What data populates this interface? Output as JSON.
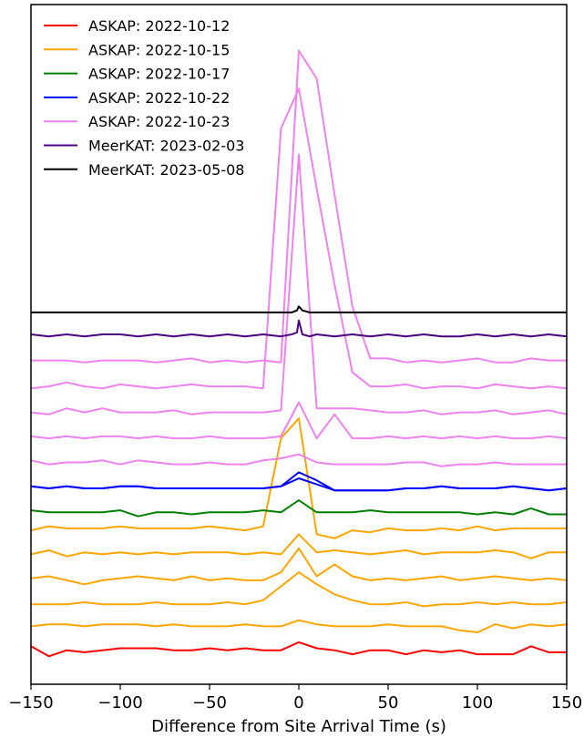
{
  "chart_data": {
    "type": "line",
    "title": "",
    "xlabel": "Difference from Site Arrival Time (s)",
    "ylabel": "",
    "xlim": [
      -150,
      150
    ],
    "ylim": [
      0,
      34
    ],
    "xticks": [
      -150,
      -100,
      -50,
      0,
      50,
      100,
      150
    ],
    "xtick_labels": [
      "−150",
      "−100",
      "−50",
      "0",
      "50",
      "100",
      "150"
    ],
    "grid": false,
    "legend_position": "top-left",
    "series": [
      {
        "name": "ASKAP: 2022-10-12",
        "color": "#ff0000"
      },
      {
        "name": "ASKAP: 2022-10-15",
        "color": "#ffa500"
      },
      {
        "name": "ASKAP: 2022-10-17",
        "color": "#008000"
      },
      {
        "name": "ASKAP: 2022-10-22",
        "color": "#0000ff"
      },
      {
        "name": "ASKAP: 2022-10-23",
        "color": "#ee82ee"
      },
      {
        "name": "MeerKAT: 2023-02-03",
        "color": "#4b0082"
      },
      {
        "name": "MeerKAT: 2023-05-08",
        "color": "#000000"
      }
    ],
    "traces": [
      {
        "series": 0,
        "x": [
          -150,
          -140,
          -130,
          -120,
          -110,
          -100,
          -90,
          -80,
          -70,
          -60,
          -50,
          -40,
          -30,
          -20,
          -10,
          0,
          10,
          20,
          30,
          40,
          50,
          60,
          70,
          80,
          90,
          100,
          110,
          120,
          130,
          140,
          150
        ],
        "y": [
          1.9,
          1.4,
          1.7,
          1.6,
          1.7,
          1.8,
          1.8,
          1.8,
          1.7,
          1.7,
          1.8,
          1.7,
          1.8,
          1.7,
          1.7,
          2.1,
          1.8,
          1.7,
          1.5,
          1.7,
          1.7,
          1.5,
          1.7,
          1.6,
          1.7,
          1.5,
          1.5,
          1.5,
          1.9,
          1.6,
          1.6
        ]
      },
      {
        "series": 1,
        "x": [
          -150,
          -140,
          -130,
          -120,
          -110,
          -100,
          -90,
          -80,
          -70,
          -60,
          -50,
          -40,
          -30,
          -20,
          -10,
          0,
          10,
          20,
          30,
          40,
          50,
          60,
          70,
          80,
          90,
          100,
          110,
          120,
          130,
          140,
          150
        ],
        "y": [
          2.9,
          3.0,
          3.0,
          2.9,
          3.0,
          3.0,
          3.0,
          2.9,
          3.0,
          2.9,
          2.9,
          2.9,
          3.0,
          2.9,
          2.9,
          3.2,
          3.0,
          2.9,
          2.9,
          2.9,
          3.0,
          2.9,
          2.9,
          2.9,
          2.7,
          2.6,
          3.0,
          2.8,
          3.0,
          2.9,
          3.0
        ]
      },
      {
        "series": 1,
        "x": [
          -150,
          -140,
          -130,
          -120,
          -110,
          -100,
          -90,
          -80,
          -70,
          -60,
          -50,
          -40,
          -30,
          -20,
          -10,
          0,
          10,
          20,
          30,
          40,
          50,
          60,
          70,
          80,
          90,
          100,
          110,
          120,
          130,
          140,
          150
        ],
        "y": [
          4.0,
          4.0,
          4.0,
          4.1,
          4.0,
          4.0,
          4.0,
          4.1,
          4.0,
          4.0,
          4.0,
          4.1,
          4.0,
          4.2,
          4.9,
          5.6,
          5.0,
          4.5,
          4.2,
          4.0,
          4.0,
          4.1,
          3.9,
          4.0,
          4.0,
          4.1,
          4.0,
          4.1,
          4.0,
          4.0,
          4.1
        ]
      },
      {
        "series": 1,
        "x": [
          -150,
          -140,
          -130,
          -120,
          -110,
          -100,
          -90,
          -80,
          -70,
          -60,
          -50,
          -40,
          -30,
          -20,
          -10,
          0,
          10,
          20,
          30,
          40,
          50,
          60,
          70,
          80,
          90,
          100,
          110,
          120,
          130,
          140,
          150
        ],
        "y": [
          5.3,
          5.4,
          5.2,
          5.0,
          5.2,
          5.3,
          5.4,
          5.3,
          5.2,
          5.4,
          5.2,
          5.3,
          5.2,
          5.2,
          5.6,
          6.8,
          5.4,
          6.0,
          5.4,
          5.2,
          5.3,
          5.2,
          5.3,
          5.4,
          5.2,
          5.3,
          5.4,
          5.3,
          5.2,
          5.3,
          5.2
        ]
      },
      {
        "series": 1,
        "x": [
          -150,
          -140,
          -130,
          -120,
          -110,
          -100,
          -90,
          -80,
          -70,
          -60,
          -50,
          -40,
          -30,
          -20,
          -10,
          0,
          10,
          20,
          30,
          40,
          50,
          60,
          70,
          80,
          90,
          100,
          110,
          120,
          130,
          140,
          150
        ],
        "y": [
          6.5,
          6.7,
          6.4,
          6.6,
          6.5,
          6.6,
          6.5,
          6.6,
          6.5,
          6.6,
          6.6,
          6.6,
          6.5,
          6.6,
          6.5,
          7.5,
          6.6,
          6.7,
          6.6,
          6.5,
          6.6,
          6.7,
          6.5,
          6.6,
          6.6,
          6.6,
          6.7,
          6.6,
          6.3,
          6.6,
          6.6
        ]
      },
      {
        "series": 1,
        "x": [
          -150,
          -140,
          -130,
          -120,
          -110,
          -100,
          -90,
          -80,
          -70,
          -60,
          -50,
          -40,
          -30,
          -20,
          -10,
          0,
          10,
          20,
          30,
          40,
          50,
          60,
          70,
          80,
          90,
          100,
          110,
          120,
          130,
          140,
          150
        ],
        "y": [
          7.7,
          7.9,
          7.8,
          7.8,
          7.8,
          7.9,
          7.8,
          7.8,
          7.8,
          7.8,
          7.9,
          7.8,
          7.7,
          7.9,
          12.3,
          13.3,
          7.5,
          7.3,
          7.7,
          7.6,
          7.8,
          7.7,
          7.7,
          7.8,
          7.7,
          7.9,
          7.7,
          7.8,
          7.8,
          7.8,
          7.8
        ]
      },
      {
        "series": 2,
        "x": [
          -150,
          -140,
          -130,
          -120,
          -110,
          -100,
          -90,
          -80,
          -70,
          -60,
          -50,
          -40,
          -30,
          -20,
          -10,
          0,
          10,
          20,
          30,
          40,
          50,
          60,
          70,
          80,
          90,
          100,
          110,
          120,
          130,
          140,
          150
        ],
        "y": [
          8.7,
          8.6,
          8.6,
          8.6,
          8.6,
          8.7,
          8.4,
          8.6,
          8.6,
          8.5,
          8.6,
          8.6,
          8.6,
          8.7,
          8.6,
          9.2,
          8.6,
          8.6,
          8.6,
          8.7,
          8.6,
          8.6,
          8.6,
          8.6,
          8.6,
          8.5,
          8.6,
          8.5,
          8.8,
          8.5,
          8.5
        ]
      },
      {
        "series": 3,
        "x": [
          -150,
          -140,
          -130,
          -120,
          -110,
          -100,
          -90,
          -80,
          -70,
          -60,
          -50,
          -40,
          -30,
          -20,
          -10,
          0,
          10,
          20,
          30,
          40,
          50,
          60,
          70,
          80,
          90,
          100,
          110,
          120,
          130,
          140,
          150
        ],
        "y": [
          9.9,
          9.8,
          9.9,
          9.8,
          9.8,
          9.9,
          9.9,
          9.8,
          9.8,
          9.8,
          9.8,
          9.8,
          9.8,
          9.8,
          9.9,
          10.6,
          10.2,
          9.7,
          9.7,
          9.7,
          9.7,
          9.8,
          9.8,
          9.9,
          9.8,
          9.8,
          9.8,
          9.9,
          9.8,
          9.7,
          9.8
        ]
      },
      {
        "series": 3,
        "x": [
          -150,
          -140,
          -130,
          -120,
          -110,
          -100,
          -90,
          -80,
          -70,
          -60,
          -50,
          -40,
          -30,
          -20,
          -10,
          0,
          10,
          20,
          30,
          40,
          50,
          60,
          70,
          80,
          90,
          100,
          110,
          120,
          130,
          140,
          150
        ],
        "y": [
          9.9,
          9.8,
          9.9,
          9.8,
          9.8,
          9.9,
          9.9,
          9.8,
          9.8,
          9.8,
          9.8,
          9.8,
          9.8,
          9.8,
          9.9,
          10.3,
          10.0,
          9.7,
          9.7,
          9.7,
          9.7,
          9.8,
          9.8,
          9.9,
          9.8,
          9.8,
          9.8,
          9.9,
          9.8,
          9.7,
          9.8
        ]
      },
      {
        "series": 4,
        "x": [
          -150,
          -140,
          -130,
          -120,
          -110,
          -100,
          -90,
          -80,
          -70,
          -60,
          -50,
          -40,
          -30,
          -20,
          -10,
          0,
          10,
          20,
          30,
          40,
          50,
          60,
          70,
          80,
          90,
          100,
          110,
          120,
          130,
          140,
          150
        ],
        "y": [
          11.2,
          11.0,
          11.1,
          11.1,
          11.2,
          11.0,
          11.2,
          11.1,
          11.0,
          11.0,
          11.1,
          11.0,
          11.0,
          11.2,
          11.3,
          11.5,
          11.1,
          11.0,
          11.0,
          11.0,
          11.0,
          11.1,
          11.1,
          10.9,
          11.0,
          11.0,
          11.1,
          11.0,
          11.0,
          11.0,
          11.0
        ]
      },
      {
        "series": 4,
        "x": [
          -150,
          -140,
          -130,
          -120,
          -110,
          -100,
          -90,
          -80,
          -70,
          -60,
          -50,
          -40,
          -30,
          -20,
          -10,
          0,
          10,
          20,
          30,
          40,
          50,
          60,
          70,
          80,
          90,
          100,
          110,
          120,
          130,
          140,
          150
        ],
        "y": [
          12.4,
          12.3,
          12.4,
          12.3,
          12.4,
          12.4,
          12.3,
          12.4,
          12.3,
          12.3,
          12.4,
          12.3,
          12.3,
          12.3,
          12.4,
          14.1,
          12.3,
          13.5,
          12.3,
          12.3,
          12.4,
          12.3,
          12.4,
          12.3,
          12.4,
          12.3,
          12.4,
          12.3,
          12.3,
          12.4,
          12.3
        ]
      },
      {
        "series": 4,
        "x": [
          -150,
          -140,
          -130,
          -120,
          -110,
          -100,
          -90,
          -80,
          -70,
          -60,
          -50,
          -40,
          -30,
          -20,
          -10,
          0,
          10,
          20,
          30,
          40,
          50,
          60,
          70,
          80,
          90,
          100,
          110,
          120,
          130,
          140,
          150
        ],
        "y": [
          13.6,
          13.5,
          13.8,
          13.6,
          13.8,
          13.6,
          13.6,
          13.6,
          13.7,
          13.5,
          13.6,
          13.6,
          13.6,
          13.6,
          13.7,
          26.5,
          13.8,
          13.8,
          13.8,
          13.7,
          13.6,
          13.6,
          13.7,
          13.5,
          13.6,
          13.6,
          13.7,
          13.5,
          13.6,
          13.7,
          13.5
        ]
      },
      {
        "series": 4,
        "x": [
          -150,
          -140,
          -130,
          -120,
          -110,
          -100,
          -90,
          -80,
          -70,
          -60,
          -50,
          -40,
          -30,
          -20,
          -10,
          0,
          10,
          20,
          30,
          40,
          50,
          60,
          70,
          80,
          90,
          100,
          110,
          120,
          130,
          140,
          150
        ],
        "y": [
          14.8,
          14.9,
          15.1,
          14.9,
          14.8,
          15.0,
          14.9,
          14.8,
          14.9,
          15.0,
          14.9,
          14.9,
          14.9,
          14.8,
          27.8,
          29.8,
          24.8,
          20.0,
          15.6,
          14.9,
          14.9,
          15.0,
          14.8,
          14.9,
          14.9,
          14.8,
          15.0,
          14.9,
          14.8,
          14.9,
          14.8
        ]
      },
      {
        "series": 4,
        "x": [
          -150,
          -140,
          -130,
          -120,
          -110,
          -100,
          -90,
          -80,
          -70,
          -60,
          -50,
          -40,
          -30,
          -20,
          -10,
          0,
          10,
          20,
          30,
          40,
          50,
          60,
          70,
          80,
          90,
          100,
          110,
          120,
          130,
          140,
          150
        ],
        "y": [
          16.2,
          16.2,
          16.2,
          16.1,
          16.2,
          16.2,
          16.2,
          16.1,
          16.2,
          16.3,
          16.1,
          16.2,
          16.1,
          16.2,
          16.1,
          31.7,
          30.3,
          24.5,
          18.9,
          16.3,
          16.3,
          16.1,
          16.2,
          16.1,
          16.2,
          16.3,
          16.1,
          16.1,
          16.3,
          16.2,
          16.2
        ]
      },
      {
        "series": 5,
        "x": [
          -150,
          -140,
          -130,
          -120,
          -110,
          -100,
          -90,
          -80,
          -70,
          -60,
          -50,
          -40,
          -30,
          -20,
          -10,
          -4,
          -1,
          0,
          2,
          6,
          10,
          20,
          30,
          40,
          50,
          60,
          70,
          80,
          90,
          100,
          110,
          120,
          130,
          140,
          150
        ],
        "y": [
          17.5,
          17.4,
          17.5,
          17.4,
          17.5,
          17.5,
          17.4,
          17.5,
          17.4,
          17.5,
          17.4,
          17.5,
          17.4,
          17.5,
          17.4,
          17.5,
          17.6,
          18.2,
          17.5,
          17.4,
          17.5,
          17.4,
          17.5,
          17.4,
          17.5,
          17.4,
          17.5,
          17.4,
          17.4,
          17.5,
          17.4,
          17.5,
          17.4,
          17.5,
          17.4
        ]
      },
      {
        "series": 6,
        "x": [
          -150,
          -140,
          -130,
          -120,
          -110,
          -100,
          -90,
          -80,
          -70,
          -60,
          -50,
          -40,
          -30,
          -20,
          -10,
          -4,
          -1,
          0,
          2,
          6,
          10,
          20,
          30,
          40,
          50,
          60,
          70,
          80,
          90,
          100,
          110,
          120,
          130,
          140,
          150
        ],
        "y": [
          18.6,
          18.6,
          18.6,
          18.6,
          18.6,
          18.6,
          18.6,
          18.6,
          18.6,
          18.6,
          18.6,
          18.6,
          18.6,
          18.6,
          18.6,
          18.6,
          18.7,
          18.9,
          18.7,
          18.6,
          18.6,
          18.6,
          18.6,
          18.6,
          18.6,
          18.6,
          18.6,
          18.6,
          18.6,
          18.6,
          18.6,
          18.6,
          18.6,
          18.6,
          18.6
        ]
      }
    ]
  }
}
